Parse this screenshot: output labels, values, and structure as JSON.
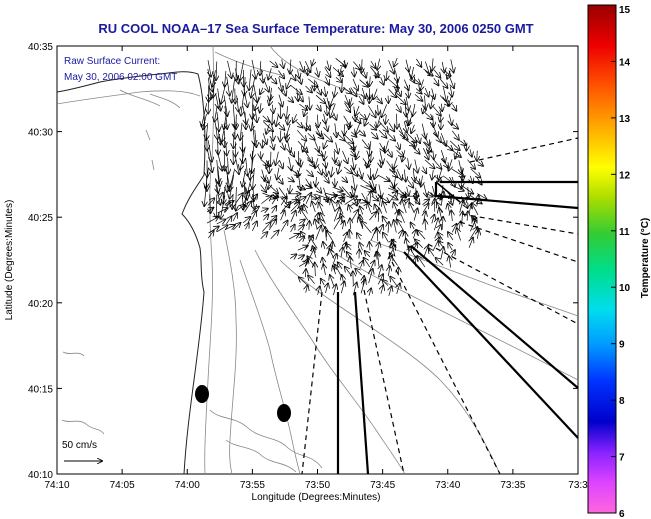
{
  "chart_data": {
    "type": "vector-field",
    "title": "RU COOL  NOAA–17  Sea Surface Temperature:  May 30, 2006 0250 GMT",
    "xlabel": "Longitude (Degrees:Minutes)",
    "ylabel": "Latitude (Degrees:Minutes)",
    "x_ticks": [
      "74:10",
      "74:05",
      "74:00",
      "73:55",
      "73:50",
      "73:45",
      "73:40",
      "73:35",
      "73:3"
    ],
    "y_ticks": [
      "40:35",
      "40:30",
      "40:25",
      "40:20",
      "40:15",
      "40:10"
    ],
    "annotation_lines": [
      "Raw Surface Current:",
      "May 30, 2006 02:00 GMT"
    ],
    "scale_label": "50 cm/s",
    "colorbar": {
      "label": "Temperature (°C)",
      "min": 6,
      "max": 15,
      "ticks": [
        "6",
        "7",
        "8",
        "9",
        "10",
        "11",
        "12",
        "13",
        "14",
        "15"
      ]
    }
  }
}
